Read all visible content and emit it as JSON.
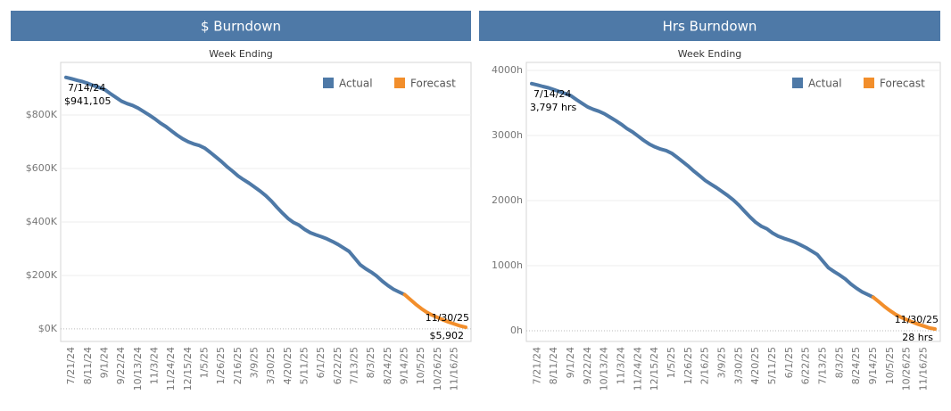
{
  "chart_data": [
    {
      "type": "line",
      "title": "$ Burndown",
      "x_label": "Week Ending",
      "categories": [
        null,
        "7/21/24",
        null,
        null,
        "8/11/24",
        null,
        null,
        "9/1/24",
        null,
        null,
        "9/22/24",
        null,
        null,
        "10/13/24",
        null,
        null,
        "11/3/24",
        null,
        null,
        "11/24/24",
        null,
        null,
        "12/15/24",
        null,
        null,
        "1/5/25",
        null,
        null,
        "1/26/25",
        null,
        null,
        "2/16/25",
        null,
        null,
        "3/9/25",
        null,
        null,
        "3/30/25",
        null,
        null,
        "4/20/25",
        null,
        null,
        "5/11/25",
        null,
        null,
        "6/1/25",
        null,
        null,
        "6/22/25",
        null,
        null,
        "7/13/25",
        null,
        null,
        "8/3/25",
        null,
        null,
        "8/24/25",
        null,
        null,
        "9/14/25",
        null,
        null,
        "10/5/25",
        null,
        null,
        "10/26/25",
        null,
        null,
        "11/16/25",
        null,
        null
      ],
      "series": [
        {
          "name": "Actual",
          "color": "#4e79a7",
          "values": [
            941105,
            936000,
            930000,
            925000,
            918000,
            910000,
            903000,
            895000,
            880000,
            866000,
            852000,
            843000,
            836000,
            826000,
            813000,
            800000,
            786000,
            770000,
            757000,
            741000,
            725000,
            711000,
            700000,
            692000,
            686000,
            676000,
            660000,
            643000,
            626000,
            607000,
            590000,
            572000,
            558000,
            545000,
            530000,
            515000,
            498000,
            478000,
            455000,
            433000,
            413000,
            398000,
            388000,
            372000,
            360000,
            352000,
            345000,
            337000,
            327000,
            316000,
            303000,
            290000,
            265000,
            240000,
            225000,
            212000,
            197000,
            178000,
            162000,
            148000,
            138000,
            128000,
            null,
            null,
            null,
            null,
            null,
            null,
            null,
            null,
            null,
            null,
            null
          ]
        },
        {
          "name": "Forecast",
          "color": "#f28e2b",
          "values": [
            null,
            null,
            null,
            null,
            null,
            null,
            null,
            null,
            null,
            null,
            null,
            null,
            null,
            null,
            null,
            null,
            null,
            null,
            null,
            null,
            null,
            null,
            null,
            null,
            null,
            null,
            null,
            null,
            null,
            null,
            null,
            null,
            null,
            null,
            null,
            null,
            null,
            null,
            null,
            null,
            null,
            null,
            null,
            null,
            null,
            null,
            null,
            null,
            null,
            null,
            null,
            null,
            null,
            null,
            null,
            null,
            null,
            null,
            null,
            null,
            null,
            128000,
            110000,
            92000,
            76000,
            62000,
            51000,
            42000,
            33000,
            25000,
            18000,
            11000,
            5902
          ]
        }
      ],
      "ylim": [
        -47000,
        997000
      ],
      "yticks": [
        {
          "value": 0,
          "label": "$0K"
        },
        {
          "value": 200000,
          "label": "$200K"
        },
        {
          "value": 400000,
          "label": "$400K"
        },
        {
          "value": 600000,
          "label": "$600K"
        },
        {
          "value": 800000,
          "label": "$800K"
        }
      ],
      "grid": true,
      "legend": "top-right",
      "annotations": [
        {
          "date": "7/14/24",
          "text": "$941,105"
        },
        {
          "date": "11/30/25",
          "text": "$5,902"
        }
      ]
    },
    {
      "type": "line",
      "title": "Hrs Burndown",
      "x_label": "Week Ending",
      "categories": [
        null,
        "7/21/24",
        null,
        null,
        "8/11/24",
        null,
        null,
        "9/1/24",
        null,
        null,
        "9/22/24",
        null,
        null,
        "10/13/24",
        null,
        null,
        "11/3/24",
        null,
        null,
        "11/24/24",
        null,
        null,
        "12/15/24",
        null,
        null,
        "1/5/25",
        null,
        null,
        "1/26/25",
        null,
        null,
        "2/16/25",
        null,
        null,
        "3/9/25",
        null,
        null,
        "3/30/25",
        null,
        null,
        "4/20/25",
        null,
        null,
        "5/11/25",
        null,
        null,
        "6/1/25",
        null,
        null,
        "6/22/25",
        null,
        null,
        "7/13/25",
        null,
        null,
        "8/3/25",
        null,
        null,
        "8/24/25",
        null,
        null,
        "9/14/25",
        null,
        null,
        "10/5/25",
        null,
        null,
        "10/26/25",
        null,
        null,
        "11/16/25",
        null,
        null
      ],
      "series": [
        {
          "name": "Actual",
          "color": "#4e79a7",
          "values": [
            3797,
            3777,
            3753,
            3732,
            3704,
            3672,
            3644,
            3611,
            3551,
            3494,
            3438,
            3401,
            3373,
            3333,
            3280,
            3228,
            3172,
            3107,
            3054,
            2990,
            2925,
            2869,
            2825,
            2792,
            2768,
            2728,
            2663,
            2594,
            2526,
            2449,
            2381,
            2308,
            2252,
            2199,
            2139,
            2078,
            2009,
            1929,
            1836,
            1747,
            1666,
            1606,
            1566,
            1501,
            1453,
            1420,
            1392,
            1360,
            1319,
            1275,
            1223,
            1170,
            1069,
            968,
            908,
            855,
            795,
            718,
            654,
            597,
            557,
            516,
            null,
            null,
            null,
            null,
            null,
            null,
            null,
            null,
            null,
            null,
            null
          ]
        },
        {
          "name": "Forecast",
          "color": "#f28e2b",
          "values": [
            null,
            null,
            null,
            null,
            null,
            null,
            null,
            null,
            null,
            null,
            null,
            null,
            null,
            null,
            null,
            null,
            null,
            null,
            null,
            null,
            null,
            null,
            null,
            null,
            null,
            null,
            null,
            null,
            null,
            null,
            null,
            null,
            null,
            null,
            null,
            null,
            null,
            null,
            null,
            null,
            null,
            null,
            null,
            null,
            null,
            null,
            null,
            null,
            null,
            null,
            null,
            null,
            null,
            null,
            null,
            null,
            null,
            null,
            null,
            null,
            null,
            516,
            444,
            371,
            307,
            250,
            206,
            169,
            133,
            101,
            73,
            44,
            28
          ]
        }
      ],
      "ylim": [
        -164,
        4123
      ],
      "yticks": [
        {
          "value": 0,
          "label": "0h"
        },
        {
          "value": 1000,
          "label": "1000h"
        },
        {
          "value": 2000,
          "label": "2000h"
        },
        {
          "value": 3000,
          "label": "3000h"
        },
        {
          "value": 4000,
          "label": "4000h"
        }
      ],
      "grid": true,
      "legend": "top-right",
      "annotations": [
        {
          "date": "7/14/24",
          "text": "3,797 hrs"
        },
        {
          "date": "11/30/25",
          "text": "28 hrs"
        }
      ]
    }
  ]
}
